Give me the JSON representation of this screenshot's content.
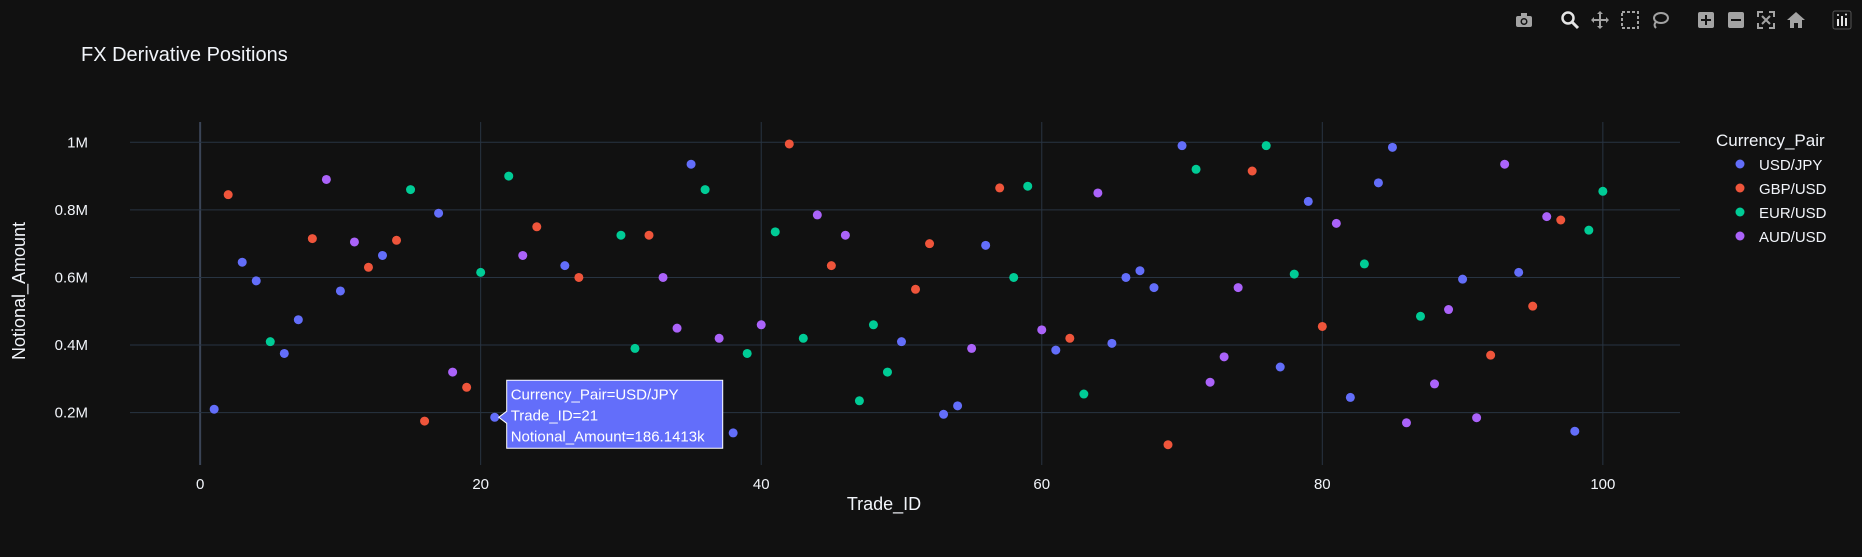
{
  "chart_data": {
    "type": "scatter",
    "title": "FX Derivative Positions",
    "xlabel": "Trade_ID",
    "ylabel": "Notional_Amount",
    "xlim": [
      -5,
      105.5
    ],
    "ylim": [
      45000,
      1060000
    ],
    "x_ticks": [
      0,
      20,
      40,
      60,
      80,
      100
    ],
    "y_ticks": [
      200000,
      400000,
      600000,
      800000,
      1000000
    ],
    "y_tick_labels": [
      "0.2M",
      "0.4M",
      "0.6M",
      "0.8M",
      "1M"
    ],
    "grid": true,
    "legend_title": "Currency_Pair",
    "legend_position": "top-right",
    "series": [
      {
        "name": "USD/JPY",
        "color": "#636efa",
        "points": [
          [
            1,
            210000
          ],
          [
            3,
            645000
          ],
          [
            4,
            590000
          ],
          [
            6,
            375000
          ],
          [
            7,
            475000
          ],
          [
            10,
            560000
          ],
          [
            13,
            665000
          ],
          [
            17,
            790000
          ],
          [
            21,
            186141
          ],
          [
            26,
            635000
          ],
          [
            35,
            935000
          ],
          [
            38,
            140000
          ],
          [
            50,
            410000
          ],
          [
            53,
            195000
          ],
          [
            54,
            220000
          ],
          [
            56,
            695000
          ],
          [
            61,
            385000
          ],
          [
            65,
            405000
          ],
          [
            66,
            600000
          ],
          [
            67,
            620000
          ],
          [
            68,
            570000
          ],
          [
            70,
            990000
          ],
          [
            77,
            335000
          ],
          [
            79,
            825000
          ],
          [
            82,
            245000
          ],
          [
            84,
            880000
          ],
          [
            85,
            985000
          ],
          [
            90,
            595000
          ],
          [
            94,
            615000
          ],
          [
            98,
            145000
          ]
        ]
      },
      {
        "name": "GBP/USD",
        "color": "#ef553b",
        "points": [
          [
            2,
            845000
          ],
          [
            8,
            715000
          ],
          [
            12,
            630000
          ],
          [
            14,
            710000
          ],
          [
            16,
            175000
          ],
          [
            19,
            275000
          ],
          [
            24,
            750000
          ],
          [
            27,
            600000
          ],
          [
            32,
            725000
          ],
          [
            42,
            995000
          ],
          [
            45,
            635000
          ],
          [
            51,
            565000
          ],
          [
            52,
            700000
          ],
          [
            57,
            865000
          ],
          [
            62,
            420000
          ],
          [
            69,
            105000
          ],
          [
            75,
            915000
          ],
          [
            80,
            455000
          ],
          [
            92,
            370000
          ],
          [
            95,
            515000
          ],
          [
            97,
            770000
          ]
        ]
      },
      {
        "name": "EUR/USD",
        "color": "#00cc96",
        "points": [
          [
            5,
            410000
          ],
          [
            15,
            860000
          ],
          [
            20,
            615000
          ],
          [
            22,
            900000
          ],
          [
            30,
            725000
          ],
          [
            31,
            390000
          ],
          [
            36,
            860000
          ],
          [
            39,
            375000
          ],
          [
            41,
            735000
          ],
          [
            43,
            420000
          ],
          [
            47,
            235000
          ],
          [
            48,
            460000
          ],
          [
            49,
            320000
          ],
          [
            58,
            600000
          ],
          [
            59,
            870000
          ],
          [
            63,
            255000
          ],
          [
            71,
            920000
          ],
          [
            76,
            990000
          ],
          [
            78,
            610000
          ],
          [
            83,
            640000
          ],
          [
            87,
            485000
          ],
          [
            99,
            740000
          ],
          [
            100,
            855000
          ]
        ]
      },
      {
        "name": "AUD/USD",
        "color": "#ab63fa",
        "points": [
          [
            9,
            890000
          ],
          [
            11,
            705000
          ],
          [
            18,
            320000
          ],
          [
            23,
            665000
          ],
          [
            33,
            600000
          ],
          [
            34,
            450000
          ],
          [
            37,
            420000
          ],
          [
            40,
            460000
          ],
          [
            44,
            785000
          ],
          [
            46,
            725000
          ],
          [
            55,
            390000
          ],
          [
            60,
            445000
          ],
          [
            64,
            850000
          ],
          [
            72,
            290000
          ],
          [
            73,
            365000
          ],
          [
            74,
            570000
          ],
          [
            81,
            760000
          ],
          [
            86,
            170000
          ],
          [
            88,
            285000
          ],
          [
            89,
            505000
          ],
          [
            91,
            185000
          ],
          [
            93,
            935000
          ],
          [
            96,
            780000
          ]
        ]
      }
    ],
    "hover": {
      "x": 21,
      "y": 186141,
      "series": "USD/JPY",
      "lines": [
        "Currency_Pair=USD/JPY",
        "Trade_ID=21",
        "Notional_Amount=186.1413k"
      ]
    }
  },
  "modebar": {
    "buttons": [
      "camera-icon",
      "zoom-icon",
      "pan-icon",
      "box-select-icon",
      "lasso-icon",
      "zoom-in-icon",
      "zoom-out-icon",
      "autoscale-icon",
      "home-icon",
      "plotly-logo-icon"
    ]
  }
}
